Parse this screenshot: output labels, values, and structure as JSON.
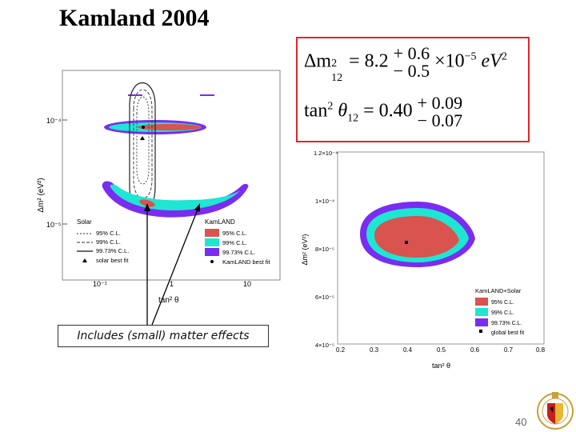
{
  "slide": {
    "title": "Kamland 2004",
    "page_number": "40",
    "note": "Includes (small) matter effects"
  },
  "formula": {
    "dm2_lhs": "Δm",
    "dm2_sup": "2",
    "dm2_sub": "12",
    "dm2_central": "= 8.2",
    "dm2_plus": "+ 0.6",
    "dm2_minus": "− 0.5",
    "dm2_unit_pre": "×10",
    "dm2_unit_exp": "−5",
    "dm2_unit_post": "eV",
    "dm2_unit_post_exp": "2",
    "tan_lhs": "tan",
    "tan_sup": "2",
    "tan_theta": "θ",
    "tan_sub": "12",
    "tan_central": "= 0.40",
    "tan_plus": "+ 0.09",
    "tan_minus": "− 0.07"
  },
  "colors": {
    "red_95": "#d9534f",
    "cyan_99": "#1ee6d2",
    "purple_9973": "#7a2cf0",
    "box_border": "#e0262a"
  },
  "chart_data": [
    {
      "type": "contour",
      "title": "",
      "xlabel": "tan² θ",
      "ylabel": "Δm² (eV²)",
      "x_scale": "log",
      "y_scale": "log",
      "x_ticks": [
        "10⁻¹",
        "1",
        "10"
      ],
      "y_ticks": [
        "10⁻⁴",
        "10⁻⁵"
      ],
      "solar_best_fit": {
        "tan2theta": 0.4,
        "dm2": 6e-05
      },
      "kamland_best_fit": {
        "tan2theta": 0.46,
        "dm2": 7.9e-05
      },
      "legend_solar_title": "Solar",
      "legend_solar": [
        "95% C.L.",
        "99% C.L.",
        "99.73% C.L.",
        "solar best fit"
      ],
      "legend_kamland_title": "KamLAND",
      "legend_kamland": [
        "95% C.L.",
        "99% C.L.",
        "99.73% C.L.",
        "KamLAND best fit"
      ]
    },
    {
      "type": "contour",
      "title": "",
      "xlabel": "tan² θ",
      "ylabel": "Δm² (eV²)",
      "x_ticks": [
        "0.2",
        "0.3",
        "0.4",
        "0.5",
        "0.6",
        "0.7",
        "0.8"
      ],
      "y_ticks": [
        "4×10⁻⁵",
        "6×10⁻⁵",
        "8×10⁻⁵",
        "1×10⁻⁴",
        "1.2×10⁻⁴"
      ],
      "xlim": [
        0.2,
        0.8
      ],
      "ylim": [
        4e-05,
        0.00012
      ],
      "global_best_fit": {
        "tan2theta": 0.4,
        "dm2": 8.2e-05
      },
      "legend_title": "KamLAND+Solar",
      "legend": [
        "95% C.L.",
        "99% C.L.",
        "99.73% C.L.",
        "global best fit"
      ]
    }
  ]
}
